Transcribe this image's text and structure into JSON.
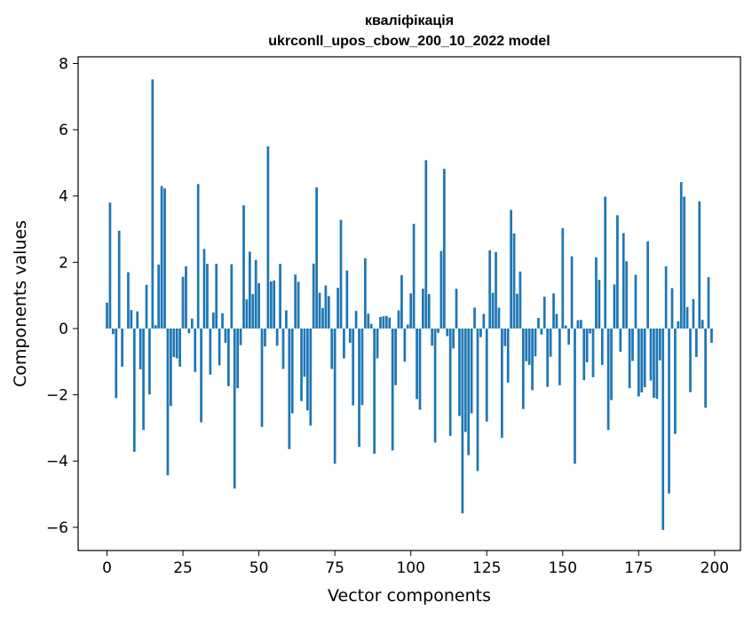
{
  "chart_data": {
    "type": "bar",
    "title": "кваліфікація",
    "subtitle": "ukrconll_upos_cbow_200_10_2022 model",
    "xlabel": "Vector components",
    "ylabel": "Components values",
    "xlim": [
      -9.5,
      208.5
    ],
    "ylim": [
      -6.7,
      8.2
    ],
    "xticks": [
      0,
      25,
      50,
      75,
      100,
      125,
      150,
      175,
      200
    ],
    "yticks": [
      -6,
      -4,
      -2,
      0,
      2,
      4,
      6,
      8
    ],
    "color": "#1f77b4",
    "grid": false,
    "values": [
      0.78,
      3.8,
      -0.17,
      -2.1,
      2.95,
      -1.15,
      0.0,
      1.7,
      0.56,
      -3.72,
      0.52,
      -1.23,
      -3.06,
      1.32,
      -1.99,
      7.52,
      0.1,
      1.93,
      4.3,
      4.23,
      -4.43,
      -2.34,
      -0.86,
      -0.9,
      -1.15,
      1.56,
      1.88,
      -0.14,
      0.3,
      -1.31,
      4.36,
      -2.83,
      2.4,
      1.95,
      -1.39,
      0.48,
      1.95,
      -1.11,
      0.46,
      -0.43,
      -1.74,
      1.94,
      -4.83,
      -1.8,
      -0.5,
      3.72,
      0.88,
      2.32,
      1.04,
      2.07,
      1.37,
      -2.97,
      -0.54,
      5.5,
      1.42,
      1.45,
      -0.52,
      1.95,
      -1.22,
      0.55,
      -3.64,
      -2.56,
      1.63,
      1.41,
      -2.19,
      -1.46,
      -2.47,
      -2.93,
      1.96,
      4.26,
      1.08,
      0.62,
      1.3,
      0.98,
      -1.22,
      -4.08,
      1.23,
      3.28,
      -0.9,
      1.75,
      -0.43,
      -2.32,
      0.53,
      -3.57,
      -2.31,
      2.12,
      0.45,
      0.14,
      -3.78,
      -0.9,
      0.35,
      0.37,
      0.38,
      0.33,
      -3.68,
      -1.71,
      0.55,
      1.61,
      -1.0,
      0.12,
      1.06,
      3.16,
      -2.13,
      -2.45,
      1.2,
      5.08,
      1.04,
      -0.52,
      -3.44,
      -0.13,
      2.34,
      4.82,
      -0.23,
      -3.24,
      -0.6,
      1.2,
      -2.64,
      -5.58,
      -3.12,
      -3.82,
      -2.56,
      0.63,
      -4.3,
      -0.26,
      0.44,
      -2.81,
      2.36,
      1.08,
      2.31,
      0.63,
      -3.3,
      -0.53,
      -1.63,
      3.58,
      2.87,
      1.05,
      1.72,
      -2.43,
      -0.99,
      -1.1,
      -1.86,
      -0.84,
      0.32,
      -0.18,
      0.96,
      -1.76,
      -0.85,
      1.06,
      0.44,
      -1.71,
      3.03,
      0.09,
      -0.49,
      2.18,
      -4.08,
      0.25,
      0.26,
      -1.56,
      -1.02,
      -0.15,
      -1.47,
      2.15,
      1.47,
      -1.1,
      3.98,
      -3.06,
      -2.16,
      1.33,
      3.42,
      -0.7,
      2.88,
      2.03,
      -1.8,
      -0.98,
      1.62,
      -2.05,
      -1.93,
      -1.77,
      2.63,
      -1.57,
      -2.09,
      -2.12,
      -0.96,
      -6.08,
      1.88,
      -4.98,
      1.22,
      -3.18,
      0.22,
      4.42,
      3.98,
      0.65,
      -1.92,
      0.89,
      -0.86,
      3.84,
      0.26,
      -2.39,
      1.55,
      -0.43
    ]
  }
}
